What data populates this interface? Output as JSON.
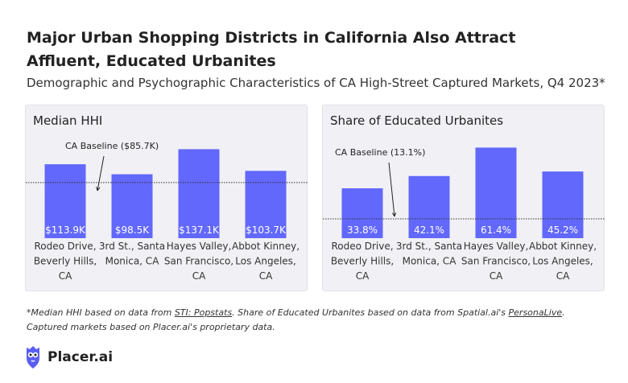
{
  "title": "Major Urban Shopping Districts in California Also Attract Affluent, Educated Urbanites",
  "subtitle": "Demographic and Psychographic Characteristics of CA High-Street Captured Markets, Q4 2023*",
  "footnote": {
    "part1": "*Median HHI based on data from ",
    "link1": "STI: Popstats",
    "part2": ". Share of Educated Urbanites based on data from Spatial.ai's ",
    "link2": "PersonaLive",
    "part3": ". Captured markets based on Placer.ai's proprietary data."
  },
  "brand": {
    "name": "Placer.ai",
    "icon": "owl-logo-icon",
    "color": "#5b5ef4"
  },
  "colors": {
    "bar": "#6268fb",
    "bar_label": "#ffffff",
    "baseline": "#333333",
    "panel_bg": "#f1f1f5"
  },
  "chart_data": [
    {
      "type": "bar",
      "title": "Median HHI",
      "categories": [
        [
          "Rodeo Drive,",
          "Beverly Hills,",
          "CA"
        ],
        [
          "3rd St., Santa",
          "Monica, CA"
        ],
        [
          "Hayes Valley,",
          "San Francisco,",
          "CA"
        ],
        [
          "Abbot Kinney,",
          "Los Angeles,",
          "CA"
        ]
      ],
      "values": [
        113.9,
        98.5,
        137.1,
        103.7
      ],
      "value_labels": [
        "$113.9K",
        "$98.5K",
        "$137.1K",
        "$103.7K"
      ],
      "ylim": [
        0,
        150
      ],
      "baseline": {
        "value": 85.7,
        "label": "CA Baseline ($85.7K)"
      },
      "grid": false
    },
    {
      "type": "bar",
      "title": "Share of Educated Urbanites",
      "categories": [
        [
          "Rodeo Drive,",
          "Beverly Hills,",
          "CA"
        ],
        [
          "3rd St., Santa",
          "Monica, CA"
        ],
        [
          "Hayes Valley,",
          "San Francisco,",
          "CA"
        ],
        [
          "Abbot Kinney,",
          "Los Angeles,",
          "CA"
        ]
      ],
      "values": [
        33.8,
        42.1,
        61.4,
        45.2
      ],
      "value_labels": [
        "33.8%",
        "42.1%",
        "61.4%",
        "45.2%"
      ],
      "ylim": [
        0,
        66
      ],
      "baseline": {
        "value": 13.1,
        "label": "CA Baseline (13.1%)"
      },
      "grid": false
    }
  ]
}
